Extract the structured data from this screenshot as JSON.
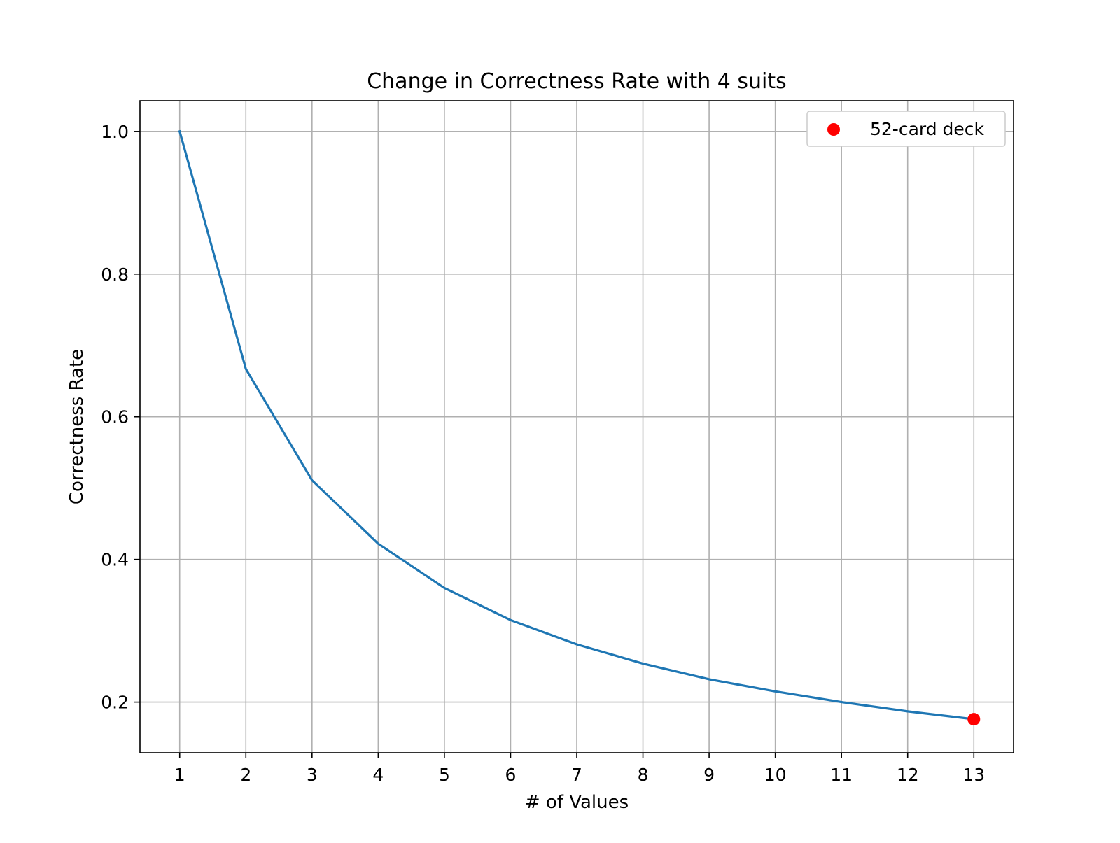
{
  "chart_data": {
    "type": "line",
    "title": "Change in Correctness Rate with 4 suits",
    "xlabel": "# of Values",
    "ylabel": "Correctness Rate",
    "x": [
      1,
      2,
      3,
      4,
      5,
      6,
      7,
      8,
      9,
      10,
      11,
      12,
      13
    ],
    "xlim": [
      0.4,
      13.6
    ],
    "ylim": [
      0.129,
      1.043
    ],
    "xticks": [
      1,
      2,
      3,
      4,
      5,
      6,
      7,
      8,
      9,
      10,
      11,
      12,
      13
    ],
    "yticks": [
      "0.2",
      "0.4",
      "0.6",
      "0.8",
      "1.0"
    ],
    "grid": true,
    "series": [
      {
        "values": [
          1.0,
          0.667,
          0.511,
          0.422,
          0.36,
          0.315,
          0.281,
          0.254,
          0.232,
          0.215,
          0.2,
          0.187,
          0.176
        ],
        "color": "#1f77b4"
      }
    ],
    "points": [
      {
        "name": "52-card deck",
        "x": 13,
        "y": 0.176,
        "color": "#ff0000"
      }
    ],
    "legend": {
      "position": "top-right",
      "entries": [
        {
          "label": "52-card deck",
          "marker": "circle",
          "color": "#ff0000"
        }
      ]
    }
  }
}
